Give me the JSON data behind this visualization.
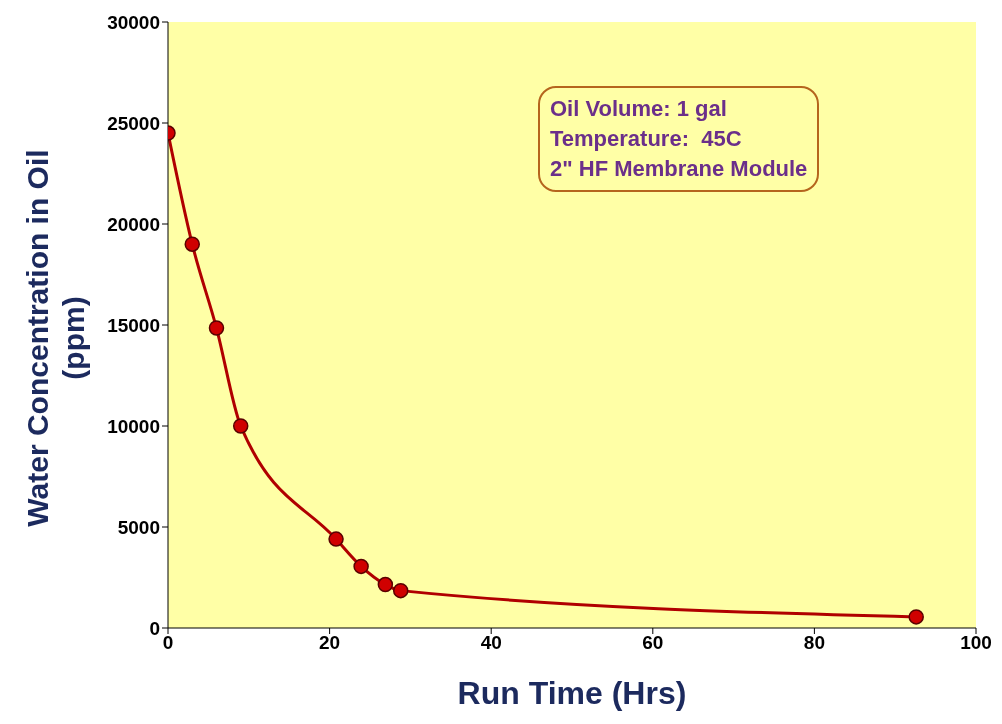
{
  "chart_data": {
    "type": "line",
    "xlabel": "Run Time (Hrs)",
    "ylabel": "Water Concentration in Oil (ppm)",
    "x": [
      0,
      3,
      6,
      9,
      20.8,
      23.9,
      26.9,
      28.8,
      92.6
    ],
    "series": [
      {
        "color": "#b00000",
        "values": [
          24500,
          19000,
          14850,
          10000,
          4400,
          3050,
          2150,
          1850,
          550
        ]
      }
    ],
    "xlim": [
      0,
      100
    ],
    "xticks": [
      0,
      20,
      40,
      60,
      80,
      100
    ],
    "ylim": [
      0,
      30000
    ],
    "yticks": [
      0,
      5000,
      10000,
      15000,
      20000,
      25000,
      30000
    ],
    "marker": "circle",
    "line_style": "solid",
    "grid": false,
    "legend": false,
    "annotations": [
      "Oil Volume: 1 gal",
      "Temperature:  45C",
      "2\" HF Membrane Module"
    ]
  }
}
